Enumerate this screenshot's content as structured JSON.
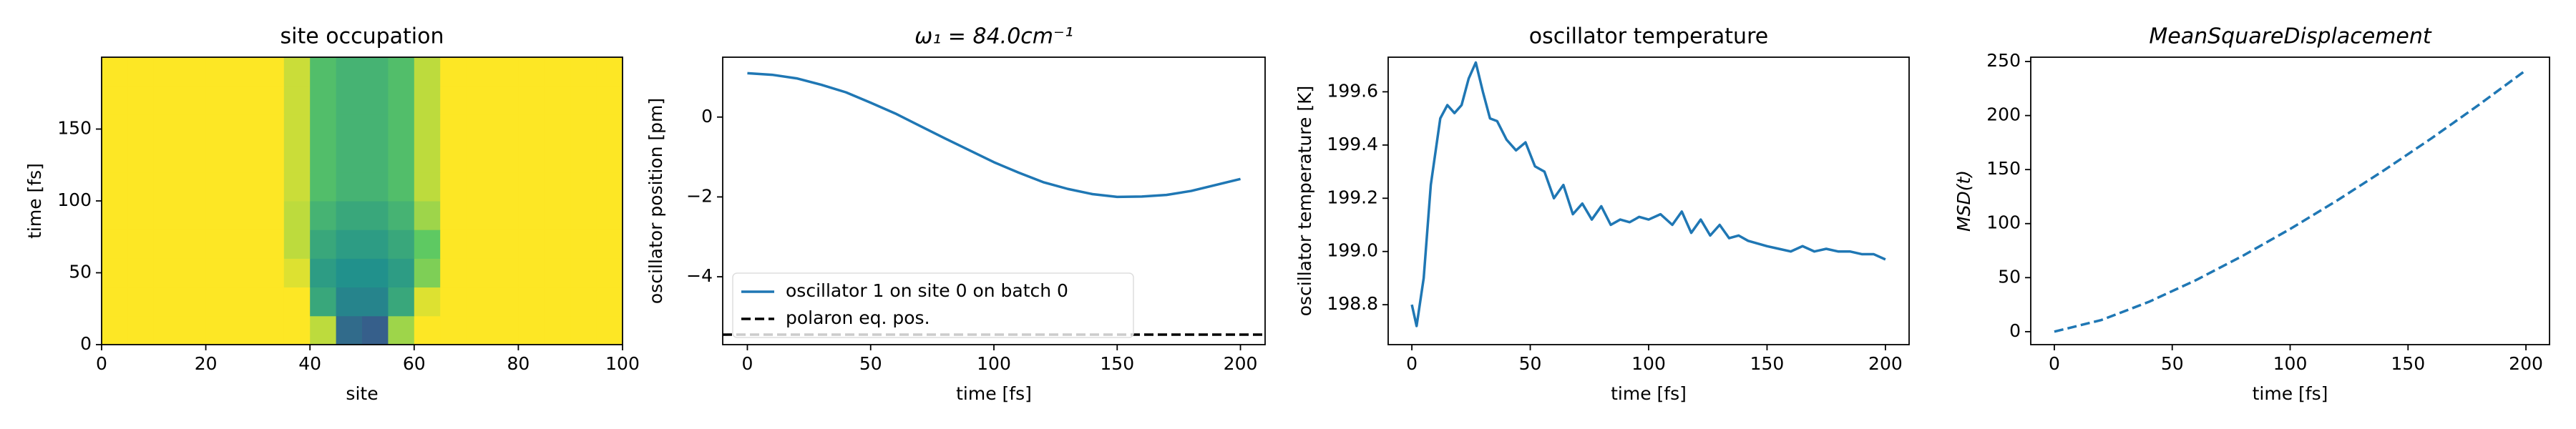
{
  "chart_data": [
    {
      "type": "heatmap",
      "title": "site occupation",
      "xlabel": "site",
      "ylabel": "time [fs]",
      "colormap": "viridis",
      "xlim": [
        0,
        100
      ],
      "ylim": [
        0,
        200
      ],
      "xticks": [
        0,
        20,
        40,
        60,
        80,
        100
      ],
      "yticks": [
        0,
        50,
        100,
        150
      ],
      "z": [
        [
          1,
          1,
          1,
          1,
          1,
          1,
          1,
          1,
          0.9,
          0.35,
          0.3,
          0.85,
          1,
          1,
          1,
          1,
          1,
          1,
          1,
          1
        ],
        [
          1,
          1,
          1,
          1,
          1,
          1,
          1,
          1,
          0.6,
          0.45,
          0.45,
          0.6,
          0.95,
          1,
          1,
          1,
          1,
          1,
          1,
          1
        ],
        [
          1,
          1,
          1,
          1,
          1,
          1,
          1,
          0.95,
          0.55,
          0.5,
          0.5,
          0.55,
          0.8,
          1,
          1,
          1,
          1,
          1,
          1,
          1
        ],
        [
          1,
          1,
          1,
          1,
          1,
          1,
          1,
          0.9,
          0.6,
          0.55,
          0.55,
          0.6,
          0.75,
          1,
          1,
          1,
          1,
          1,
          1,
          1
        ],
        [
          1,
          1,
          1,
          1,
          1,
          1,
          1,
          0.9,
          0.65,
          0.6,
          0.6,
          0.65,
          0.85,
          1,
          1,
          1,
          1,
          1,
          1,
          1
        ],
        [
          1,
          1,
          1,
          1,
          1,
          1,
          1,
          0.92,
          0.7,
          0.65,
          0.65,
          0.7,
          0.9,
          1,
          1,
          1,
          1,
          1,
          1,
          1
        ],
        [
          1,
          1,
          1,
          1,
          1,
          1,
          1,
          0.92,
          0.7,
          0.65,
          0.65,
          0.7,
          0.9,
          1,
          1,
          1,
          1,
          1,
          1,
          1
        ],
        [
          1,
          1,
          1,
          1,
          1,
          1,
          1,
          0.92,
          0.7,
          0.65,
          0.65,
          0.7,
          0.9,
          1,
          1,
          1,
          1,
          1,
          1,
          1
        ],
        [
          1,
          1,
          1,
          1,
          1,
          1,
          1,
          0.92,
          0.7,
          0.65,
          0.65,
          0.7,
          0.9,
          1,
          1,
          1,
          1,
          1,
          1,
          1
        ],
        [
          1,
          1,
          1,
          1,
          1,
          1,
          1,
          0.92,
          0.7,
          0.65,
          0.65,
          0.7,
          0.9,
          1,
          1,
          1,
          1,
          1,
          1,
          1
        ]
      ]
    },
    {
      "type": "line",
      "title": "ω₁ = 84.0cm⁻¹",
      "xlabel": "time [fs]",
      "ylabel": "oscillator position [pm]",
      "xlim": [
        -10,
        210
      ],
      "ylim": [
        -5.7,
        1.5
      ],
      "xticks": [
        0,
        50,
        100,
        150,
        200
      ],
      "yticks": [
        {
          "value": -4,
          "label": "−4"
        },
        {
          "value": -2,
          "label": "−2"
        },
        0
      ],
      "legend": "lower left",
      "x": [
        0,
        10,
        20,
        30,
        40,
        50,
        60,
        70,
        80,
        90,
        100,
        110,
        120,
        130,
        140,
        150,
        160,
        170,
        180,
        190,
        200
      ],
      "series": [
        {
          "name": "oscillator 1 on site 0 on batch 0",
          "color": "#1f77b4",
          "values": [
            1.1,
            1.06,
            0.97,
            0.81,
            0.62,
            0.36,
            0.09,
            -0.22,
            -0.53,
            -0.83,
            -1.13,
            -1.39,
            -1.63,
            -1.8,
            -1.93,
            -2.0,
            -1.99,
            -1.95,
            -1.85,
            -1.7,
            -1.55
          ]
        }
      ],
      "hlines": [
        {
          "name": "polaron eq. pos.",
          "color": "#000000",
          "value": -5.45
        }
      ]
    },
    {
      "type": "line",
      "title": "oscillator temperature",
      "xlabel": "time [fs]",
      "ylabel": "oscillator temperature [K]",
      "xlim": [
        -10,
        210
      ],
      "ylim": [
        198.65,
        199.73
      ],
      "xticks": [
        0,
        50,
        100,
        150,
        200
      ],
      "yticks": [
        198.8,
        {
          "value": 199,
          "label": "199.0"
        },
        199.2,
        199.4,
        199.6
      ],
      "x": [
        0,
        2,
        5,
        8,
        12,
        15,
        18,
        21,
        24,
        27,
        30,
        33,
        36,
        40,
        44,
        48,
        52,
        56,
        60,
        64,
        68,
        72,
        76,
        80,
        84,
        88,
        92,
        96,
        100,
        105,
        110,
        114,
        118,
        122,
        126,
        130,
        134,
        138,
        142,
        146,
        150,
        155,
        160,
        165,
        170,
        175,
        180,
        185,
        190,
        195,
        200
      ],
      "series": [
        {
          "color": "#1f77b4",
          "values": [
            198.8,
            198.72,
            198.9,
            199.25,
            199.5,
            199.55,
            199.52,
            199.55,
            199.65,
            199.71,
            199.6,
            199.5,
            199.49,
            199.42,
            199.38,
            199.41,
            199.32,
            199.3,
            199.2,
            199.25,
            199.14,
            199.18,
            199.12,
            199.17,
            199.1,
            199.12,
            199.11,
            199.13,
            199.12,
            199.14,
            199.1,
            199.15,
            199.07,
            199.12,
            199.06,
            199.1,
            199.05,
            199.06,
            199.04,
            199.03,
            199.02,
            199.01,
            199.0,
            199.02,
            199.0,
            199.01,
            199.0,
            199.0,
            198.99,
            198.99,
            198.97
          ]
        }
      ]
    },
    {
      "type": "line",
      "title": "MeanSquareDisplacement",
      "xlabel": "time [fs]",
      "ylabel": "MSD(t)",
      "xlim": [
        -10,
        210
      ],
      "ylim": [
        -12,
        254
      ],
      "xticks": [
        0,
        50,
        100,
        150,
        200
      ],
      "yticks": [
        0,
        50,
        100,
        150,
        200,
        250
      ],
      "x": [
        0,
        20,
        40,
        60,
        80,
        100,
        120,
        140,
        160,
        180,
        200
      ],
      "series": [
        {
          "color": "#1f77b4",
          "linestyle": "dashed",
          "values": [
            0,
            10.8,
            27.5,
            47.6,
            70.3,
            95,
            121.5,
            149.6,
            179,
            209.9,
            242
          ]
        }
      ]
    }
  ]
}
